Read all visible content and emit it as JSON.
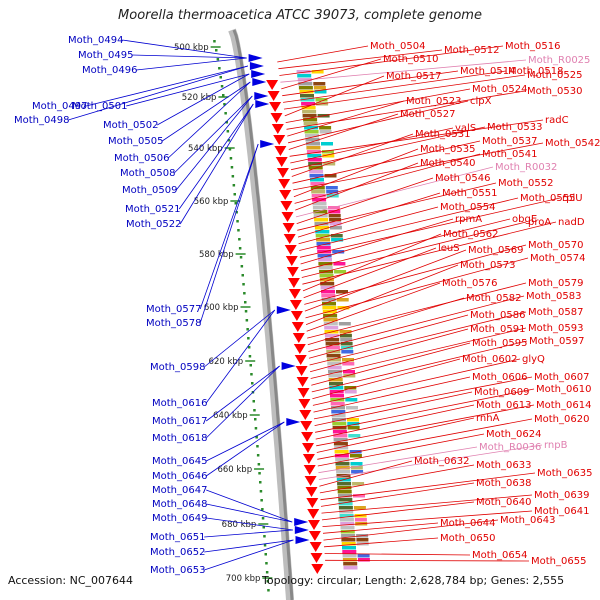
{
  "title": "Moorella thermoacetica ATCC 39073, complete genome",
  "footer": {
    "accession": "Accession: NC_007644",
    "summary": "Topology: circular; Length: 2,628,784 bp; Genes: 2,555"
  },
  "scale": {
    "unit": "kbp",
    "ticks": [
      "500 kbp",
      "520 kbp",
      "540 kbp",
      "560 kbp",
      "580 kbp",
      "600 kbp",
      "620 kbp",
      "640 kbp",
      "660 kbp",
      "680 kbp",
      "700 kbp"
    ]
  },
  "colors": {
    "forward_label": "#e00000",
    "reverse_label": "#0000c0",
    "rna_label": "#e080b0",
    "backbone": "#888888",
    "tick_dot": "#2a8a2a"
  },
  "reverse_strand_genes": [
    "Moth_0494",
    "Moth_0495",
    "Moth_0496",
    "Moth_0497",
    "Moth_0498",
    "Moth_0501",
    "Moth_0502",
    "Moth_0505",
    "Moth_0506",
    "Moth_0508",
    "Moth_0509",
    "Moth_0521",
    "Moth_0522",
    "Moth_0577",
    "Moth_0578",
    "Moth_0598",
    "Moth_0616",
    "Moth_0617",
    "Moth_0618",
    "Moth_0645",
    "Moth_0646",
    "Moth_0647",
    "Moth_0648",
    "Moth_0649",
    "Moth_0651",
    "Moth_0652",
    "Moth_0653"
  ],
  "forward_strand_genes": [
    "Moth_0504",
    "Moth_0512",
    "Moth_0516",
    "Moth_R0025",
    "Moth_0510",
    "Moth_0514",
    "Moth_0518",
    "Moth_0525",
    "Moth_0517",
    "Moth_0524",
    "Moth_0530",
    "Moth_0523",
    "clpX",
    "Moth_0527",
    "radC",
    "valS",
    "Moth_0533",
    "Moth_0531",
    "Moth_0537",
    "Moth_0542",
    "Moth_0535",
    "Moth_0541",
    "Moth_0540",
    "Moth_R0032",
    "Moth_0546",
    "Moth_0552",
    "Moth_0551",
    "Moth_0554",
    "Moth_0555",
    "rplU",
    "rpmA",
    "obgE",
    "proA",
    "nadD",
    "Moth_0562",
    "leuS",
    "Moth_0570",
    "Moth_0569",
    "Moth_0574",
    "Moth_0573",
    "Moth_0576",
    "Moth_0579",
    "Moth_0582",
    "Moth_0583",
    "Moth_0586",
    "Moth_0587",
    "Moth_0591",
    "Moth_0593",
    "Moth_0595",
    "Moth_0597",
    "Moth_0602",
    "glyQ",
    "Moth_0606",
    "Moth_0607",
    "Moth_0609",
    "Moth_0610",
    "Moth_0613",
    "Moth_0614",
    "rnhA",
    "Moth_0620",
    "Moth_0624",
    "Moth_R0036",
    "rnpB",
    "Moth_0632",
    "Moth_0633",
    "Moth_0635",
    "Moth_0638",
    "Moth_0639",
    "Moth_0640",
    "Moth_0641",
    "Moth_0644",
    "Moth_0643",
    "Moth_0650",
    "Moth_0654",
    "Moth_0655"
  ],
  "rna_genes": [
    "Moth_R0025",
    "Moth_R0032",
    "Moth_R0036",
    "rnpB"
  ]
}
